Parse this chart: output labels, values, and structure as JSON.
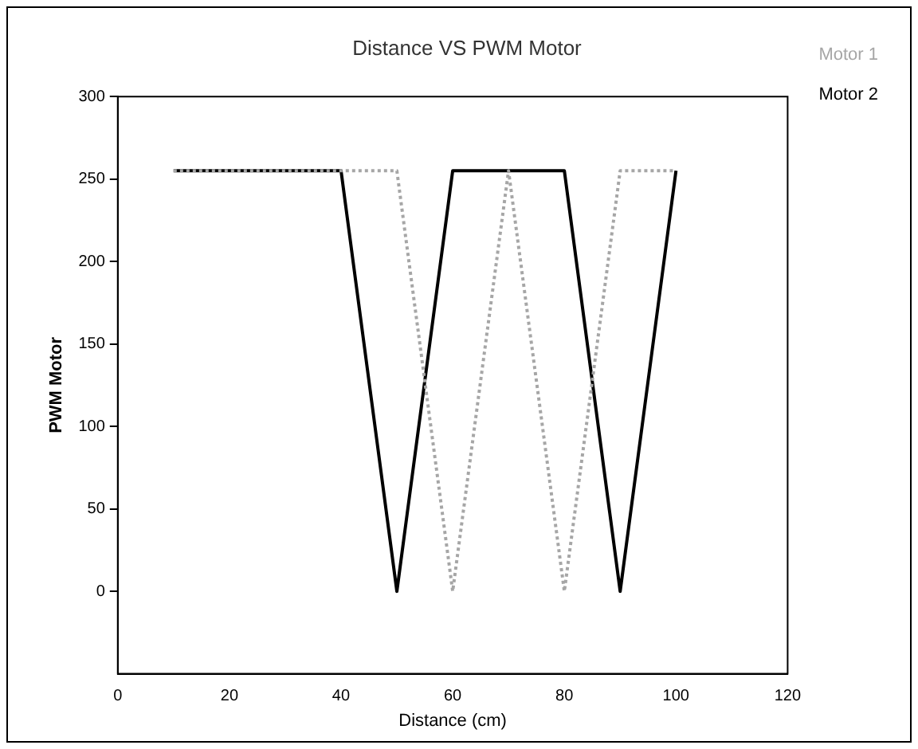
{
  "chart_data": {
    "type": "line",
    "title": "Distance VS PWM Motor",
    "xlabel": "Distance (cm)",
    "ylabel": "PWM Motor",
    "xlim": [
      0,
      120
    ],
    "xticks": [
      0,
      20,
      40,
      60,
      80,
      100,
      120
    ],
    "ylim": [
      -50,
      300
    ],
    "yticks": [
      0,
      50,
      100,
      150,
      200,
      250,
      300
    ],
    "grid": false,
    "legend": "right",
    "series": [
      {
        "name": "Motor 1",
        "color": "#a6a6a6",
        "line_style": "dotted",
        "x": [
          10,
          50,
          60,
          70,
          80,
          90,
          100
        ],
        "values": [
          255,
          255,
          0,
          255,
          0,
          255,
          255
        ]
      },
      {
        "name": "Motor 2",
        "color": "#000000",
        "line_style": "solid",
        "x": [
          10,
          40,
          50,
          60,
          80,
          90,
          100
        ],
        "values": [
          255,
          255,
          0,
          255,
          255,
          0,
          255
        ]
      }
    ]
  }
}
